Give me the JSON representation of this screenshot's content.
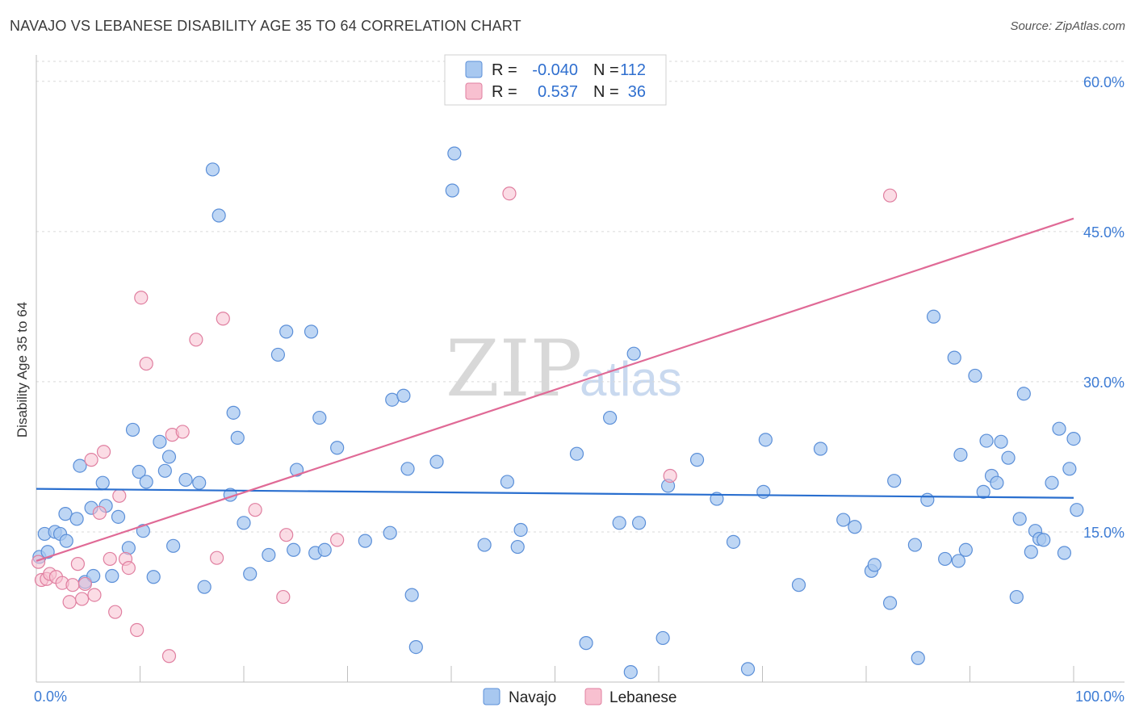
{
  "title": "NAVAJO VS LEBANESE DISABILITY AGE 35 TO 64 CORRELATION CHART",
  "source": "Source: ZipAtlas.com",
  "watermark": {
    "part1": "ZIP",
    "part2": "atlas"
  },
  "legend": {
    "rows": [
      {
        "r_label": "R =",
        "r_value": "-0.040",
        "n_label": "N =",
        "n_value": "112",
        "color": "#a8c8f0",
        "border": "#5b8fd8"
      },
      {
        "r_label": "R =",
        "r_value": "0.537",
        "n_label": "N =",
        "n_value": "36",
        "color": "#f8c0d0",
        "border": "#e07fa0"
      }
    ]
  },
  "bottom_legend": {
    "navajo": "Navajo",
    "lebanese": "Lebanese"
  },
  "colors": {
    "navajo_fill": "#a8c8f0",
    "navajo_stroke": "#5b8fd8",
    "navajo_line": "#2a6fcf",
    "lebanese_fill": "#f8c0d0",
    "lebanese_stroke": "#e07fa0",
    "lebanese_line": "#e06a96",
    "tick_label": "#3c7bd4"
  },
  "chart_data": {
    "type": "scatter",
    "title": "NAVAJO VS LEBANESE DISABILITY AGE 35 TO 64 CORRELATION CHART",
    "xlabel": "",
    "ylabel": "Disability Age 35 to 64",
    "xlim": [
      0,
      100
    ],
    "ylim": [
      0,
      62
    ],
    "x_tick_labels": [
      "0.0%",
      "100.0%"
    ],
    "y_ticks": [
      15,
      30,
      45,
      60
    ],
    "y_tick_labels": [
      "15.0%",
      "30.0%",
      "45.0%",
      "60.0%"
    ],
    "series": [
      {
        "name": "Navajo",
        "trend": {
          "x": [
            0,
            100
          ],
          "y": [
            19.3,
            18.4
          ]
        },
        "points": [
          [
            0.3,
            12.5
          ],
          [
            1.1,
            13.0
          ],
          [
            0.8,
            14.8
          ],
          [
            1.8,
            15.0
          ],
          [
            2.3,
            14.8
          ],
          [
            2.9,
            14.1
          ],
          [
            2.8,
            16.8
          ],
          [
            3.9,
            16.3
          ],
          [
            4.2,
            21.6
          ],
          [
            4.7,
            10.0
          ],
          [
            5.5,
            10.6
          ],
          [
            5.3,
            17.4
          ],
          [
            6.4,
            19.9
          ],
          [
            6.7,
            17.6
          ],
          [
            7.3,
            10.6
          ],
          [
            7.9,
            16.5
          ],
          [
            8.9,
            13.4
          ],
          [
            9.3,
            25.2
          ],
          [
            9.9,
            21.0
          ],
          [
            10.3,
            15.1
          ],
          [
            10.6,
            20.0
          ],
          [
            11.3,
            10.5
          ],
          [
            11.9,
            24.0
          ],
          [
            12.4,
            21.1
          ],
          [
            12.8,
            22.5
          ],
          [
            13.2,
            13.6
          ],
          [
            14.4,
            20.2
          ],
          [
            15.7,
            19.9
          ],
          [
            16.2,
            9.5
          ],
          [
            17.0,
            51.2
          ],
          [
            17.6,
            46.6
          ],
          [
            18.7,
            18.7
          ],
          [
            19.0,
            26.9
          ],
          [
            19.4,
            24.4
          ],
          [
            20.0,
            15.9
          ],
          [
            20.6,
            10.8
          ],
          [
            22.4,
            12.7
          ],
          [
            23.3,
            32.7
          ],
          [
            24.1,
            35.0
          ],
          [
            24.8,
            13.2
          ],
          [
            25.1,
            21.2
          ],
          [
            26.5,
            35.0
          ],
          [
            26.9,
            12.9
          ],
          [
            27.8,
            13.2
          ],
          [
            27.3,
            26.4
          ],
          [
            29.0,
            23.4
          ],
          [
            31.7,
            14.1
          ],
          [
            34.1,
            14.9
          ],
          [
            34.3,
            28.2
          ],
          [
            35.4,
            28.6
          ],
          [
            35.8,
            21.3
          ],
          [
            36.2,
            8.7
          ],
          [
            36.6,
            3.5
          ],
          [
            38.6,
            22.0
          ],
          [
            40.3,
            52.8
          ],
          [
            40.1,
            49.1
          ],
          [
            43.2,
            13.7
          ],
          [
            45.4,
            20.0
          ],
          [
            46.4,
            13.5
          ],
          [
            46.7,
            15.2
          ],
          [
            52.1,
            22.8
          ],
          [
            53.0,
            3.9
          ],
          [
            55.3,
            26.4
          ],
          [
            56.2,
            15.9
          ],
          [
            57.3,
            1.0
          ],
          [
            57.6,
            32.8
          ],
          [
            58.1,
            15.9
          ],
          [
            60.4,
            4.4
          ],
          [
            60.9,
            19.6
          ],
          [
            63.7,
            22.2
          ],
          [
            65.6,
            18.3
          ],
          [
            67.2,
            14.0
          ],
          [
            68.6,
            1.3
          ],
          [
            70.1,
            19.0
          ],
          [
            70.3,
            24.2
          ],
          [
            73.5,
            9.7
          ],
          [
            75.6,
            23.3
          ],
          [
            77.8,
            16.2
          ],
          [
            78.9,
            15.5
          ],
          [
            80.5,
            11.1
          ],
          [
            80.8,
            11.7
          ],
          [
            82.3,
            7.9
          ],
          [
            82.7,
            20.1
          ],
          [
            85.0,
            2.4
          ],
          [
            84.7,
            13.7
          ],
          [
            85.9,
            18.2
          ],
          [
            86.5,
            36.5
          ],
          [
            87.6,
            12.3
          ],
          [
            88.5,
            32.4
          ],
          [
            88.9,
            12.1
          ],
          [
            89.1,
            22.7
          ],
          [
            89.6,
            13.2
          ],
          [
            90.5,
            30.6
          ],
          [
            91.3,
            19.0
          ],
          [
            91.6,
            24.1
          ],
          [
            92.1,
            20.6
          ],
          [
            92.6,
            19.9
          ],
          [
            93.0,
            24.0
          ],
          [
            93.7,
            22.4
          ],
          [
            94.5,
            8.5
          ],
          [
            94.8,
            16.3
          ],
          [
            95.2,
            28.8
          ],
          [
            95.9,
            13.0
          ],
          [
            96.3,
            15.1
          ],
          [
            96.7,
            14.3
          ],
          [
            97.1,
            14.2
          ],
          [
            97.9,
            19.9
          ],
          [
            98.6,
            25.3
          ],
          [
            99.1,
            12.9
          ],
          [
            99.6,
            21.3
          ],
          [
            100.0,
            24.3
          ],
          [
            100.3,
            17.2
          ]
        ]
      },
      {
        "name": "Lebanese",
        "trend": {
          "x": [
            0,
            100
          ],
          "y": [
            12.1,
            46.3
          ]
        },
        "points": [
          [
            0.2,
            12.0
          ],
          [
            0.5,
            10.2
          ],
          [
            1.0,
            10.3
          ],
          [
            1.3,
            10.8
          ],
          [
            1.9,
            10.5
          ],
          [
            2.5,
            9.9
          ],
          [
            3.2,
            8.0
          ],
          [
            3.5,
            9.7
          ],
          [
            4.0,
            11.8
          ],
          [
            4.4,
            8.3
          ],
          [
            4.7,
            9.8
          ],
          [
            5.3,
            22.2
          ],
          [
            5.6,
            8.7
          ],
          [
            6.1,
            16.9
          ],
          [
            6.5,
            23.0
          ],
          [
            7.1,
            12.3
          ],
          [
            7.6,
            7.0
          ],
          [
            8.0,
            18.6
          ],
          [
            8.6,
            12.3
          ],
          [
            8.9,
            11.4
          ],
          [
            9.7,
            5.2
          ],
          [
            10.1,
            38.4
          ],
          [
            10.6,
            31.8
          ],
          [
            12.8,
            2.6
          ],
          [
            13.1,
            24.7
          ],
          [
            14.1,
            25.0
          ],
          [
            15.4,
            34.2
          ],
          [
            17.4,
            12.4
          ],
          [
            18.0,
            36.3
          ],
          [
            21.1,
            17.2
          ],
          [
            23.8,
            8.5
          ],
          [
            24.1,
            14.7
          ],
          [
            29.0,
            14.2
          ],
          [
            45.6,
            48.8
          ],
          [
            61.1,
            20.6
          ],
          [
            82.3,
            48.6
          ]
        ]
      }
    ]
  }
}
